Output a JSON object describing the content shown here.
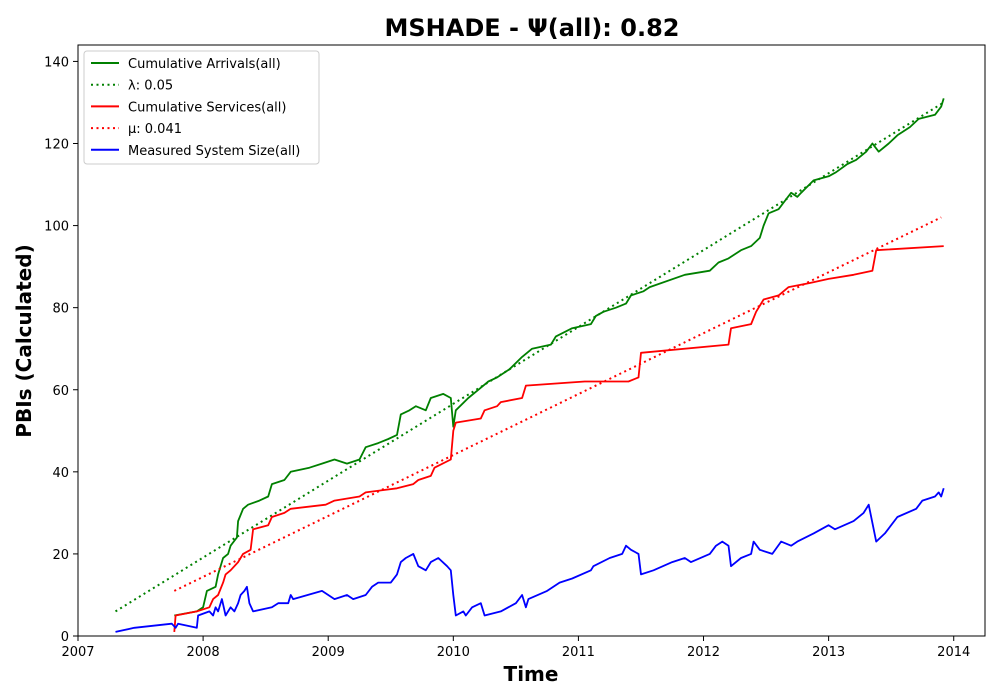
{
  "chart_data": {
    "type": "line",
    "title": "MSHADE -  Ψ(all): 0.82",
    "xlabel": "Time",
    "ylabel": "PBIs (Calculated)",
    "xlim": [
      2007,
      2014.25
    ],
    "ylim": [
      0,
      144
    ],
    "xticks": [
      2007,
      2008,
      2009,
      2010,
      2011,
      2012,
      2013,
      2014
    ],
    "yticks": [
      0,
      20,
      40,
      60,
      80,
      100,
      120,
      140
    ],
    "grid": false,
    "legend_position": "upper-left",
    "series": [
      {
        "name": "Cumulative Arrivals(all)",
        "style": "solid",
        "color": "#008000",
        "points": [
          [
            2007.77,
            5
          ],
          [
            2007.95,
            6
          ],
          [
            2008.0,
            7
          ],
          [
            2008.03,
            11
          ],
          [
            2008.1,
            12
          ],
          [
            2008.12,
            15
          ],
          [
            2008.16,
            19
          ],
          [
            2008.2,
            20
          ],
          [
            2008.22,
            22
          ],
          [
            2008.27,
            24
          ],
          [
            2008.28,
            28
          ],
          [
            2008.32,
            31
          ],
          [
            2008.36,
            32
          ],
          [
            2008.45,
            33
          ],
          [
            2008.52,
            34
          ],
          [
            2008.55,
            37
          ],
          [
            2008.65,
            38
          ],
          [
            2008.7,
            40
          ],
          [
            2008.85,
            41
          ],
          [
            2008.95,
            42
          ],
          [
            2009.05,
            43
          ],
          [
            2009.15,
            42
          ],
          [
            2009.25,
            43
          ],
          [
            2009.3,
            46
          ],
          [
            2009.4,
            47
          ],
          [
            2009.48,
            48
          ],
          [
            2009.55,
            49
          ],
          [
            2009.58,
            54
          ],
          [
            2009.65,
            55
          ],
          [
            2009.7,
            56
          ],
          [
            2009.78,
            55
          ],
          [
            2009.82,
            58
          ],
          [
            2009.92,
            59
          ],
          [
            2009.98,
            58
          ],
          [
            2010.0,
            51
          ],
          [
            2010.02,
            55
          ],
          [
            2010.12,
            58
          ],
          [
            2010.2,
            60
          ],
          [
            2010.28,
            62
          ],
          [
            2010.35,
            63
          ],
          [
            2010.45,
            65
          ],
          [
            2010.55,
            68
          ],
          [
            2010.63,
            70
          ],
          [
            2010.78,
            71
          ],
          [
            2010.82,
            73
          ],
          [
            2010.95,
            75
          ],
          [
            2011.1,
            76
          ],
          [
            2011.14,
            78
          ],
          [
            2011.2,
            79
          ],
          [
            2011.3,
            80
          ],
          [
            2011.38,
            81
          ],
          [
            2011.42,
            83
          ],
          [
            2011.52,
            84
          ],
          [
            2011.57,
            85
          ],
          [
            2011.85,
            88
          ],
          [
            2012.05,
            89
          ],
          [
            2012.12,
            91
          ],
          [
            2012.2,
            92
          ],
          [
            2012.3,
            94
          ],
          [
            2012.38,
            95
          ],
          [
            2012.45,
            97
          ],
          [
            2012.48,
            100
          ],
          [
            2012.52,
            103
          ],
          [
            2012.6,
            104
          ],
          [
            2012.65,
            106
          ],
          [
            2012.7,
            108
          ],
          [
            2012.75,
            107
          ],
          [
            2012.78,
            108
          ],
          [
            2012.88,
            111
          ],
          [
            2013.0,
            112
          ],
          [
            2013.06,
            113
          ],
          [
            2013.15,
            115
          ],
          [
            2013.22,
            116
          ],
          [
            2013.3,
            118
          ],
          [
            2013.35,
            120
          ],
          [
            2013.4,
            118
          ],
          [
            2013.48,
            120
          ],
          [
            2013.55,
            122
          ],
          [
            2013.65,
            124
          ],
          [
            2013.72,
            126
          ],
          [
            2013.85,
            127
          ],
          [
            2013.9,
            129
          ],
          [
            2013.92,
            131
          ]
        ]
      },
      {
        "name": "λ: 0.05",
        "style": "dotted",
        "color": "#008000",
        "points": [
          [
            2007.3,
            6
          ],
          [
            2013.92,
            130
          ]
        ]
      },
      {
        "name": "Cumulative Services(all)",
        "style": "solid",
        "color": "#ff0000",
        "points": [
          [
            2007.77,
            1
          ],
          [
            2007.78,
            5
          ],
          [
            2007.95,
            6
          ],
          [
            2008.05,
            7
          ],
          [
            2008.08,
            9
          ],
          [
            2008.12,
            10
          ],
          [
            2008.16,
            13
          ],
          [
            2008.18,
            15
          ],
          [
            2008.22,
            16
          ],
          [
            2008.28,
            18
          ],
          [
            2008.32,
            20
          ],
          [
            2008.38,
            21
          ],
          [
            2008.4,
            26
          ],
          [
            2008.52,
            27
          ],
          [
            2008.55,
            29
          ],
          [
            2008.65,
            30
          ],
          [
            2008.7,
            31
          ],
          [
            2008.98,
            32
          ],
          [
            2009.05,
            33
          ],
          [
            2009.25,
            34
          ],
          [
            2009.3,
            35
          ],
          [
            2009.55,
            36
          ],
          [
            2009.68,
            37
          ],
          [
            2009.72,
            38
          ],
          [
            2009.82,
            39
          ],
          [
            2009.85,
            41
          ],
          [
            2009.98,
            43
          ],
          [
            2010.0,
            50
          ],
          [
            2010.02,
            52
          ],
          [
            2010.22,
            53
          ],
          [
            2010.25,
            55
          ],
          [
            2010.35,
            56
          ],
          [
            2010.38,
            57
          ],
          [
            2010.55,
            58
          ],
          [
            2010.58,
            61
          ],
          [
            2011.05,
            62
          ],
          [
            2011.4,
            62
          ],
          [
            2011.48,
            63
          ],
          [
            2011.5,
            69
          ],
          [
            2012.2,
            71
          ],
          [
            2012.22,
            75
          ],
          [
            2012.38,
            76
          ],
          [
            2012.42,
            79
          ],
          [
            2012.48,
            82
          ],
          [
            2012.6,
            83
          ],
          [
            2012.68,
            85
          ],
          [
            2012.85,
            86
          ],
          [
            2013.0,
            87
          ],
          [
            2013.2,
            88
          ],
          [
            2013.35,
            89
          ],
          [
            2013.38,
            94
          ],
          [
            2013.92,
            95
          ]
        ]
      },
      {
        "name": "μ: 0.041",
        "style": "dotted",
        "color": "#ff0000",
        "points": [
          [
            2007.77,
            11
          ],
          [
            2013.9,
            102
          ]
        ]
      },
      {
        "name": "Measured System Size(all)",
        "style": "solid",
        "color": "#0000ff",
        "points": [
          [
            2007.3,
            1
          ],
          [
            2007.45,
            2
          ],
          [
            2007.75,
            3
          ],
          [
            2007.78,
            2
          ],
          [
            2007.8,
            3
          ],
          [
            2007.95,
            2
          ],
          [
            2007.96,
            5
          ],
          [
            2008.05,
            6
          ],
          [
            2008.08,
            5
          ],
          [
            2008.1,
            7
          ],
          [
            2008.12,
            6
          ],
          [
            2008.15,
            9
          ],
          [
            2008.18,
            5
          ],
          [
            2008.2,
            6
          ],
          [
            2008.22,
            7
          ],
          [
            2008.25,
            6
          ],
          [
            2008.28,
            8
          ],
          [
            2008.3,
            10
          ],
          [
            2008.33,
            11
          ],
          [
            2008.35,
            12
          ],
          [
            2008.37,
            8
          ],
          [
            2008.4,
            6
          ],
          [
            2008.55,
            7
          ],
          [
            2008.6,
            8
          ],
          [
            2008.68,
            8
          ],
          [
            2008.7,
            10
          ],
          [
            2008.72,
            9
          ],
          [
            2008.95,
            11
          ],
          [
            2009.05,
            9
          ],
          [
            2009.15,
            10
          ],
          [
            2009.2,
            9
          ],
          [
            2009.3,
            10
          ],
          [
            2009.35,
            12
          ],
          [
            2009.4,
            13
          ],
          [
            2009.5,
            13
          ],
          [
            2009.55,
            15
          ],
          [
            2009.58,
            18
          ],
          [
            2009.62,
            19
          ],
          [
            2009.68,
            20
          ],
          [
            2009.72,
            17
          ],
          [
            2009.78,
            16
          ],
          [
            2009.82,
            18
          ],
          [
            2009.88,
            19
          ],
          [
            2009.95,
            17
          ],
          [
            2009.98,
            16
          ],
          [
            2010.0,
            10
          ],
          [
            2010.02,
            5
          ],
          [
            2010.08,
            6
          ],
          [
            2010.1,
            5
          ],
          [
            2010.15,
            7
          ],
          [
            2010.22,
            8
          ],
          [
            2010.25,
            5
          ],
          [
            2010.38,
            6
          ],
          [
            2010.5,
            8
          ],
          [
            2010.55,
            10
          ],
          [
            2010.58,
            7
          ],
          [
            2010.6,
            9
          ],
          [
            2010.75,
            11
          ],
          [
            2010.85,
            13
          ],
          [
            2010.95,
            14
          ],
          [
            2011.1,
            16
          ],
          [
            2011.12,
            17
          ],
          [
            2011.25,
            19
          ],
          [
            2011.35,
            20
          ],
          [
            2011.38,
            22
          ],
          [
            2011.42,
            21
          ],
          [
            2011.48,
            20
          ],
          [
            2011.5,
            15
          ],
          [
            2011.6,
            16
          ],
          [
            2011.75,
            18
          ],
          [
            2011.85,
            19
          ],
          [
            2011.9,
            18
          ],
          [
            2012.05,
            20
          ],
          [
            2012.1,
            22
          ],
          [
            2012.15,
            23
          ],
          [
            2012.2,
            22
          ],
          [
            2012.22,
            17
          ],
          [
            2012.3,
            19
          ],
          [
            2012.38,
            20
          ],
          [
            2012.4,
            23
          ],
          [
            2012.45,
            21
          ],
          [
            2012.55,
            20
          ],
          [
            2012.62,
            23
          ],
          [
            2012.7,
            22
          ],
          [
            2012.75,
            23
          ],
          [
            2012.88,
            25
          ],
          [
            2013.0,
            27
          ],
          [
            2013.05,
            26
          ],
          [
            2013.2,
            28
          ],
          [
            2013.28,
            30
          ],
          [
            2013.32,
            32
          ],
          [
            2013.38,
            23
          ],
          [
            2013.45,
            25
          ],
          [
            2013.55,
            29
          ],
          [
            2013.7,
            31
          ],
          [
            2013.75,
            33
          ],
          [
            2013.85,
            34
          ],
          [
            2013.88,
            35
          ],
          [
            2013.9,
            34
          ],
          [
            2013.92,
            36
          ]
        ]
      }
    ]
  }
}
